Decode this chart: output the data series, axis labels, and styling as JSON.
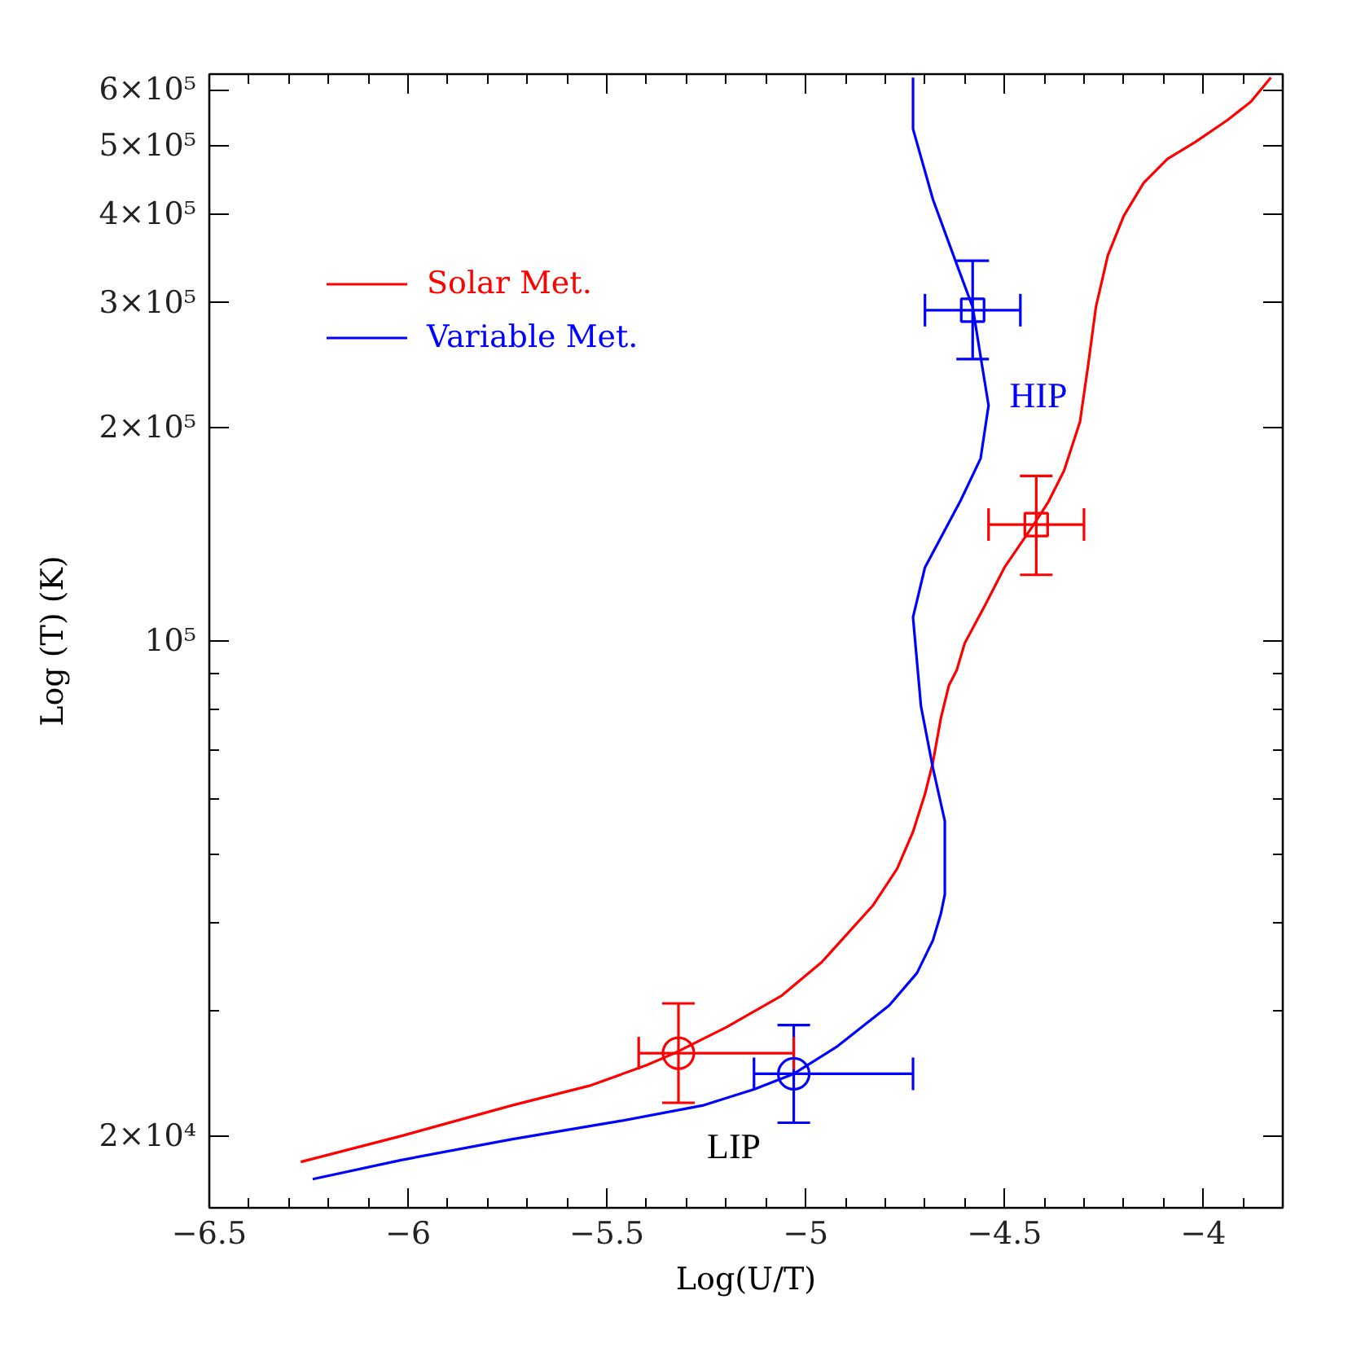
{
  "chart_data": {
    "type": "line",
    "xlabel": "Log(U/T)",
    "ylabel": "Log (T) (K)",
    "log": true,
    "grid": false,
    "legend": "top left",
    "xlim": [
      -6.5,
      -3.8
    ],
    "ylim": [
      15850,
      631000
    ],
    "xticks": [
      -6.5,
      {
        "value": -6.4,
        "label": null
      },
      {
        "value": -6.3,
        "label": null
      },
      {
        "value": -6.2,
        "label": null
      },
      {
        "value": -6.1,
        "label": null
      },
      -6,
      {
        "value": -5.9,
        "label": null
      },
      {
        "value": -5.8,
        "label": null
      },
      {
        "value": -5.7,
        "label": null
      },
      {
        "value": -5.6,
        "label": null
      },
      -5.5,
      {
        "value": -5.4,
        "label": null
      },
      {
        "value": -5.3,
        "label": null
      },
      {
        "value": -5.2,
        "label": null
      },
      {
        "value": -5.1,
        "label": null
      },
      -5,
      {
        "value": -4.9,
        "label": null
      },
      {
        "value": -4.8,
        "label": null
      },
      {
        "value": -4.7,
        "label": null
      },
      {
        "value": -4.6,
        "label": null
      },
      -4.5,
      {
        "value": -4.4,
        "label": null
      },
      {
        "value": -4.3,
        "label": null
      },
      {
        "value": -4.2,
        "label": null
      },
      {
        "value": -4.1,
        "label": null
      },
      -4,
      {
        "value": -3.9,
        "label": null
      }
    ],
    "yticks": [
      {
        "value": 20000,
        "label": "2×10⁴"
      },
      {
        "value": 30000,
        "label": null
      },
      {
        "value": 40000,
        "label": null
      },
      {
        "value": 50000,
        "label": null
      },
      {
        "value": 60000,
        "label": null
      },
      {
        "value": 70000,
        "label": null
      },
      {
        "value": 80000,
        "label": null
      },
      {
        "value": 90000,
        "label": null
      },
      {
        "value": 100000,
        "label": "10⁵"
      },
      {
        "value": 200000,
        "label": "2×10⁵"
      },
      {
        "value": 300000,
        "label": "3×10⁵"
      },
      {
        "value": 400000,
        "label": "4×10⁵"
      },
      {
        "value": 500000,
        "label": "5×10⁵"
      },
      {
        "value": 600000,
        "label": "6×10⁵"
      }
    ],
    "series": [
      {
        "name": "Solar Met.",
        "color": "#ff0000",
        "line_style": "solid",
        "x": [
          -6.27,
          -6.02,
          -5.74,
          -5.54,
          -5.4,
          -5.33,
          -5.2,
          -5.06,
          -4.96,
          -4.83,
          -4.77,
          -4.73,
          -4.7,
          -4.68,
          -4.66,
          -4.64,
          -4.62,
          -4.6,
          -4.55,
          -4.5,
          -4.43,
          -4.39,
          -4.35,
          -4.31,
          -4.29,
          -4.27,
          -4.24,
          -4.2,
          -4.15,
          -4.09,
          -4.02,
          -3.94,
          -3.88,
          -3.83
        ],
        "values": [
          18400,
          20000,
          22100,
          23600,
          25200,
          26200,
          28500,
          31600,
          35200,
          42400,
          47700,
          53800,
          60800,
          67400,
          77800,
          86500,
          91000,
          99300,
          112000,
          127000,
          145000,
          157000,
          174000,
          204000,
          244000,
          296000,
          350000,
          398000,
          443000,
          479000,
          506000,
          543000,
          577000,
          624000
        ]
      },
      {
        "name": "Variable Met.",
        "color": "#0000ff",
        "line_style": "solid",
        "x": [
          -6.24,
          -6.02,
          -5.74,
          -5.47,
          -5.26,
          -5.13,
          -5.03,
          -4.92,
          -4.79,
          -4.72,
          -4.68,
          -4.66,
          -4.65,
          -4.65,
          -4.68,
          -4.71,
          -4.73,
          -4.7,
          -4.61,
          -4.56,
          -4.54,
          -4.56,
          -4.58,
          -4.62,
          -4.68,
          -4.73,
          -4.73
        ],
        "values": [
          17400,
          18500,
          19800,
          21000,
          22100,
          23300,
          24500,
          26800,
          30600,
          34000,
          37800,
          41200,
          43900,
          55700,
          66200,
          80900,
          108000,
          127000,
          158000,
          181000,
          215000,
          252000,
          296000,
          340000,
          420000,
          528000,
          624000
        ]
      },
      {
        "type": "scatter",
        "marker": "circle",
        "colors": [
          "#ff0000",
          "#0000ff"
        ],
        "x": [
          -5.32,
          -5.03
        ],
        "values": [
          26200,
          24500
        ],
        "errors": [
          [
            22300,
            30800
          ],
          [
            20900,
            28700
          ]
        ],
        "xerrors": [
          [
            -5.42,
            -5.03
          ],
          [
            -5.13,
            -4.73
          ]
        ]
      },
      {
        "type": "scatter",
        "marker": "square",
        "colors": [
          "#ff0000",
          "#0000ff"
        ],
        "x": [
          -4.42,
          -4.58
        ],
        "values": [
          146000,
          293000
        ],
        "errors": [
          [
            124000,
            171000
          ],
          [
            250000,
            344000
          ]
        ],
        "xerrors": [
          [
            -4.54,
            -4.3
          ],
          [
            -4.7,
            -4.46
          ]
        ]
      }
    ],
    "annotations": [
      "HIP",
      "LIP"
    ]
  }
}
